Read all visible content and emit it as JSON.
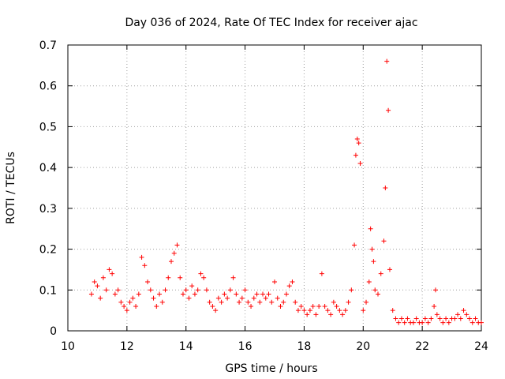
{
  "chart_data": {
    "type": "scatter",
    "title": "Day 036 of 2024, Rate Of TEC Index for receiver ajac",
    "xlabel": "GPS time / hours",
    "ylabel": "ROTI / TECUs",
    "xlim": [
      10,
      24
    ],
    "ylim": [
      0,
      0.7
    ],
    "xticks": [
      "10",
      "12",
      "14",
      "16",
      "18",
      "20",
      "22",
      "24"
    ],
    "yticks": [
      "0",
      "0.1",
      "0.2",
      "0.3",
      "0.4",
      "0.5",
      "0.6",
      "0.7"
    ],
    "grid": true,
    "marker": "+",
    "color": "#ff0000",
    "series": [
      {
        "x": [
          10.8,
          10.9,
          11.0,
          11.1,
          11.2,
          11.3,
          11.4,
          11.5,
          11.6,
          11.7,
          11.8,
          11.9,
          12.0,
          12.1,
          12.2,
          12.3,
          12.4,
          12.5,
          12.6,
          12.7,
          12.8,
          12.9,
          13.0,
          13.1,
          13.2,
          13.3,
          13.4,
          13.5,
          13.6,
          13.7,
          13.8,
          13.9,
          14.0,
          14.1,
          14.2,
          14.3,
          14.4,
          14.5,
          14.6,
          14.7,
          14.8,
          14.9,
          15.0,
          15.1,
          15.2,
          15.3,
          15.4,
          15.5,
          15.6,
          15.7,
          15.8,
          15.9,
          16.0,
          16.1,
          16.2,
          16.3,
          16.4,
          16.5,
          16.6,
          16.7,
          16.8,
          16.9,
          17.0,
          17.1,
          17.2,
          17.3,
          17.4,
          17.5,
          17.6,
          17.7,
          17.8,
          17.9,
          18.0,
          18.1,
          18.2,
          18.3,
          18.4,
          18.5,
          18.6,
          18.7,
          18.8,
          18.9,
          19.0,
          19.1,
          19.2,
          19.3,
          19.4,
          19.5,
          19.6,
          19.7,
          19.75,
          19.8,
          19.85,
          19.9,
          20.0,
          20.1,
          20.2,
          20.25,
          20.3,
          20.35,
          20.4,
          20.5,
          20.6,
          20.7,
          20.75,
          20.8,
          20.85,
          20.9,
          21.0,
          21.1,
          21.2,
          21.3,
          21.4,
          21.5,
          21.6,
          21.7,
          21.8,
          21.9,
          22.0,
          22.1,
          22.2,
          22.3,
          22.4,
          22.45,
          22.5,
          22.6,
          22.7,
          22.8,
          22.9,
          23.0,
          23.1,
          23.2,
          23.3,
          23.4,
          23.5,
          23.6,
          23.7,
          23.8,
          23.9,
          24.0
        ],
        "y": [
          0.09,
          0.12,
          0.11,
          0.08,
          0.13,
          0.1,
          0.15,
          0.14,
          0.09,
          0.1,
          0.07,
          0.06,
          0.05,
          0.07,
          0.08,
          0.06,
          0.09,
          0.18,
          0.16,
          0.12,
          0.1,
          0.08,
          0.06,
          0.09,
          0.07,
          0.1,
          0.13,
          0.17,
          0.19,
          0.21,
          0.13,
          0.09,
          0.1,
          0.08,
          0.11,
          0.09,
          0.1,
          0.14,
          0.13,
          0.1,
          0.07,
          0.06,
          0.05,
          0.08,
          0.07,
          0.09,
          0.08,
          0.1,
          0.13,
          0.09,
          0.07,
          0.08,
          0.1,
          0.07,
          0.06,
          0.08,
          0.09,
          0.07,
          0.09,
          0.08,
          0.09,
          0.07,
          0.12,
          0.08,
          0.06,
          0.07,
          0.09,
          0.11,
          0.12,
          0.07,
          0.05,
          0.06,
          0.05,
          0.04,
          0.05,
          0.06,
          0.04,
          0.06,
          0.14,
          0.06,
          0.05,
          0.04,
          0.07,
          0.06,
          0.05,
          0.04,
          0.05,
          0.07,
          0.1,
          0.21,
          0.43,
          0.47,
          0.46,
          0.41,
          0.05,
          0.07,
          0.12,
          0.25,
          0.2,
          0.17,
          0.1,
          0.09,
          0.14,
          0.22,
          0.35,
          0.66,
          0.54,
          0.15,
          0.05,
          0.03,
          0.02,
          0.03,
          0.02,
          0.03,
          0.02,
          0.02,
          0.03,
          0.02,
          0.02,
          0.03,
          0.02,
          0.03,
          0.06,
          0.1,
          0.04,
          0.03,
          0.02,
          0.03,
          0.02,
          0.03,
          0.03,
          0.04,
          0.03,
          0.05,
          0.04,
          0.03,
          0.02,
          0.03,
          0.02,
          0.02
        ]
      }
    ]
  }
}
